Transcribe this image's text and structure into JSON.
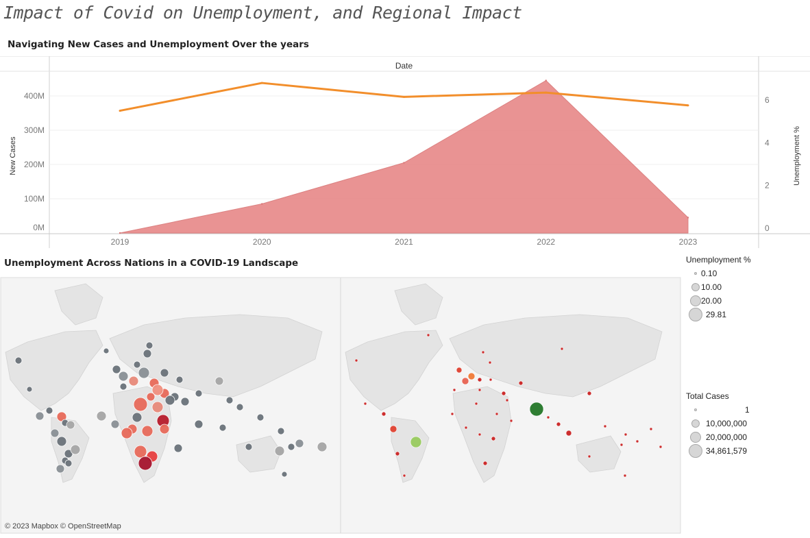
{
  "dashboard_title": "Impact of Covid on Unemployment, and Regional Impact",
  "line_sheet_title": "Navigating New Cases and Unemployment Over the years",
  "map_sheet_title": "Unemployment Across Nations in a COVID-19 Landscape",
  "attribution": "© 2023 Mapbox © OpenStreetMap",
  "colors": {
    "area": "#e88a8a",
    "line": "#f28e2b",
    "grey_dot": "#6b737a",
    "light_grey_dot": "#b8b8b8",
    "red_dot": "#cc2e2e",
    "green_dot": "#2e7d32"
  },
  "chart_data": {
    "type": "area",
    "title": "Navigating New Cases and Unemployment Over the years",
    "xlabel": "Date",
    "ylabel": "New Cases",
    "y2label": "Unemployment %",
    "x": [
      "2019",
      "2020",
      "2021",
      "2022",
      "2023"
    ],
    "ylim": [
      0,
      450000000
    ],
    "y2lim": [
      0,
      7
    ],
    "y_ticks": [
      {
        "value": 0,
        "label": "0M"
      },
      {
        "value": 100000000,
        "label": "100M"
      },
      {
        "value": 200000000,
        "label": "200M"
      },
      {
        "value": 300000000,
        "label": "300M"
      },
      {
        "value": 400000000,
        "label": "400M"
      }
    ],
    "y2_ticks": [
      0,
      2,
      4,
      6
    ],
    "series": [
      {
        "name": "New Cases",
        "kind": "area",
        "axis": "left",
        "values": [
          0,
          85000000,
          205000000,
          445000000,
          45000000
        ]
      },
      {
        "name": "Unemployment %",
        "kind": "line",
        "axis": "right",
        "values": [
          5.5,
          6.8,
          6.15,
          6.35,
          5.75
        ]
      }
    ]
  },
  "map_chart_data": {
    "type": "scatter",
    "panels": [
      "Unemployment %",
      "Total Cases"
    ],
    "legend_unemployment": {
      "title": "Unemployment %",
      "items": [
        "0.10",
        "10.00",
        "20.00",
        "29.81"
      ]
    },
    "legend_total_cases": {
      "title": "Total Cases",
      "items": [
        "1",
        "10,000,000",
        "20,000,000",
        "34,861,579"
      ]
    }
  }
}
